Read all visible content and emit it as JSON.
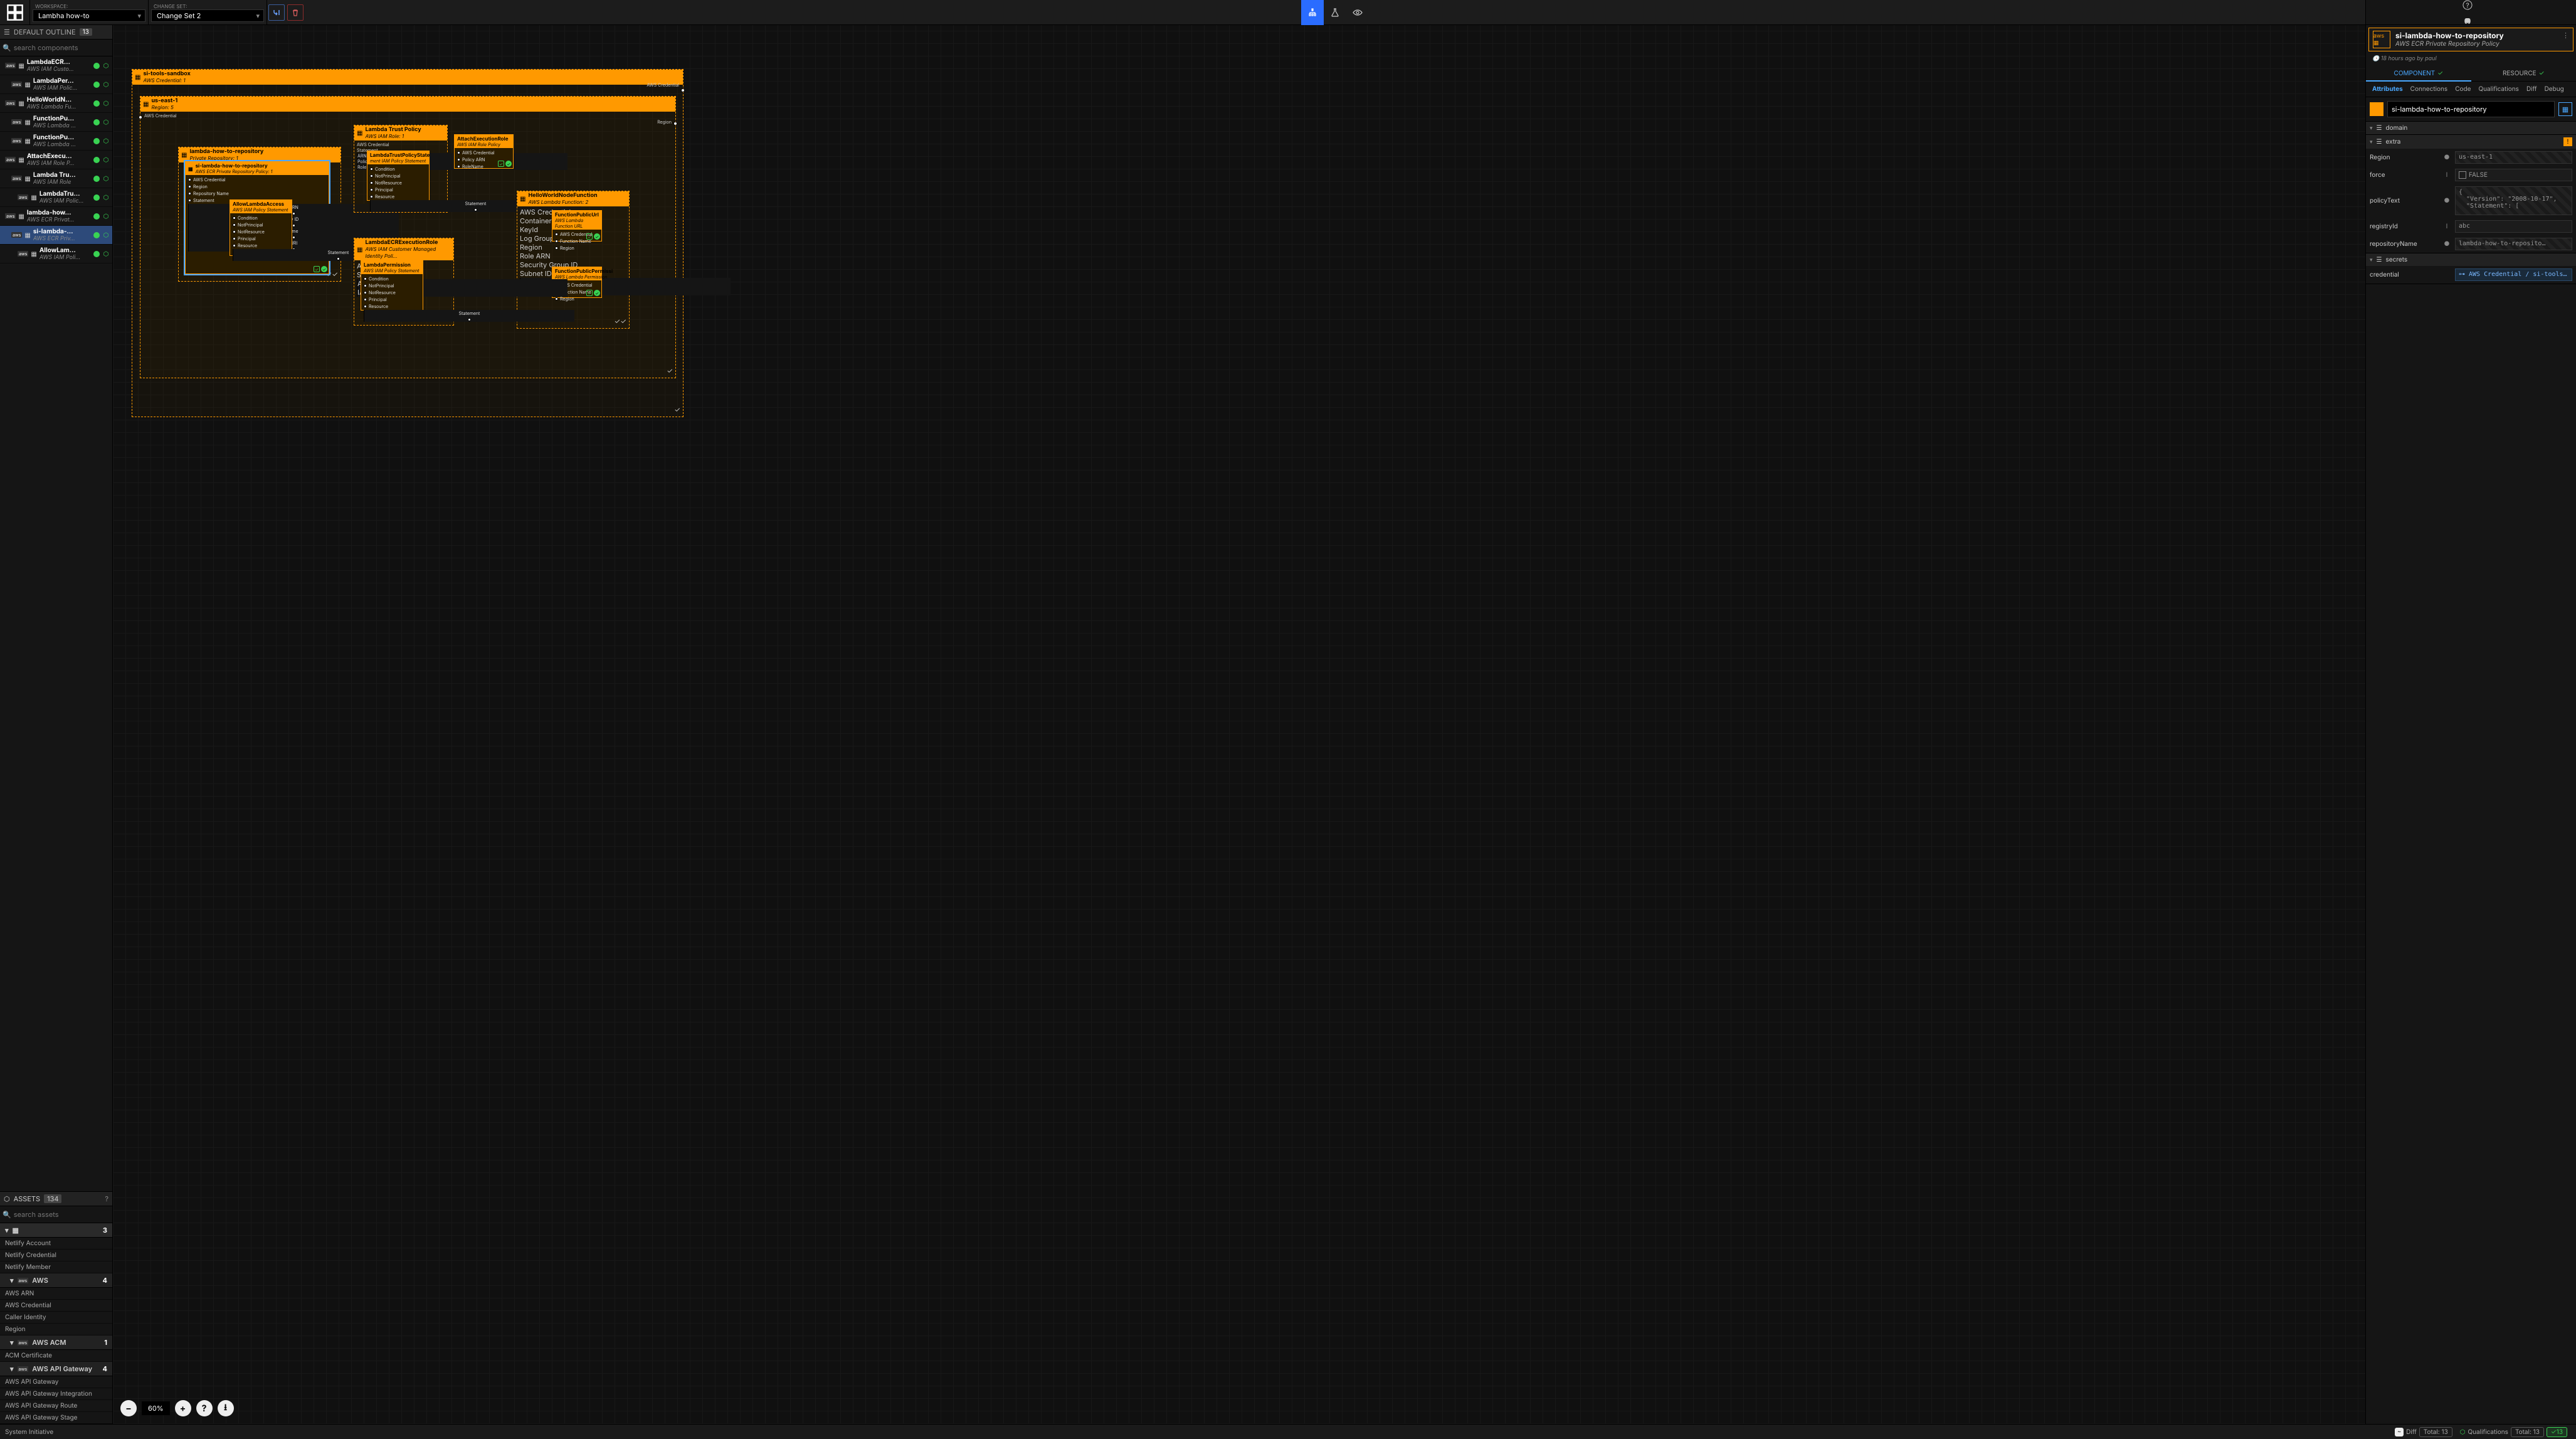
{
  "colors": {
    "accent_orange": "#ff9900",
    "accent_blue": "#2a6cff",
    "ok_green": "#39d353",
    "bg": "#111111",
    "panel": "#151515"
  },
  "topbar": {
    "workspace_label": "WORKSPACE:",
    "workspace_value": "Lambha how-to",
    "changeset_label": "CHANGE SET:",
    "changeset_value": "Change Set 2",
    "avatar_initial": "P"
  },
  "outline": {
    "title": "DEFAULT OUTLINE",
    "count": "13",
    "search_placeholder": "search components",
    "items": [
      {
        "indent": 0,
        "name": "LambdaECR…",
        "sub": "AWS IAM Custo…",
        "selected": false
      },
      {
        "indent": 1,
        "name": "LambdaPer…",
        "sub": "AWS IAM Polic…",
        "selected": false
      },
      {
        "indent": 0,
        "name": "HelloWorldN…",
        "sub": "AWS Lambda Fu…",
        "selected": false
      },
      {
        "indent": 1,
        "name": "FunctionPu…",
        "sub": "AWS Lambda …",
        "selected": false
      },
      {
        "indent": 1,
        "name": "FunctionPu…",
        "sub": "AWS Lambda …",
        "selected": false
      },
      {
        "indent": 0,
        "name": "AttachExecu…",
        "sub": "AWS IAM Role P…",
        "selected": false
      },
      {
        "indent": 1,
        "name": "Lambda Tru…",
        "sub": "AWS IAM Role",
        "selected": false
      },
      {
        "indent": 2,
        "name": "LambdaTru…",
        "sub": "AWS IAM Polic…",
        "selected": false
      },
      {
        "indent": 0,
        "name": "lambda-how…",
        "sub": "AWS ECR Privat…",
        "selected": false
      },
      {
        "indent": 1,
        "name": "si-lambda-…",
        "sub": "AWS ECR Priv…",
        "selected": true
      },
      {
        "indent": 2,
        "name": "AllowLam…",
        "sub": "AWS IAM Poli…",
        "selected": false
      }
    ]
  },
  "assets": {
    "title": "ASSETS",
    "count": "134",
    "search_placeholder": "search assets",
    "top_count": "3",
    "top_items": [
      "Netlify Account",
      "Netlify Credential",
      "Netlify Member"
    ],
    "groups": [
      {
        "name": "AWS",
        "count": "4",
        "items": [
          "AWS ARN",
          "AWS Credential",
          "Caller Identity",
          "Region"
        ]
      },
      {
        "name": "AWS ACM",
        "count": "1",
        "items": [
          "ACM Certificate"
        ]
      },
      {
        "name": "AWS API Gateway",
        "count": "4",
        "items": [
          "AWS API Gateway",
          "AWS API Gateway Integration",
          "AWS API Gateway Route",
          "AWS API Gateway Stage"
        ]
      }
    ]
  },
  "canvas": {
    "zoom": "60%",
    "outer_frame": {
      "title": "si-tools-sandbox",
      "sub": "AWS Credential: 1",
      "right_socket": "AWS Credential"
    },
    "region_frame": {
      "title": "us-east-1",
      "sub": "Region: 5",
      "left_socket": "AWS Credential",
      "right_socket": "Region"
    },
    "repo_frame": {
      "title": "lambda-how-to-repository",
      "sub": "Private Repository: 1"
    },
    "selected_node": {
      "title": "si-lambda-how-to-repository",
      "sub": "AWS ECR Private Repository Policy: 1",
      "inputs": [
        "AWS Credential",
        "Region",
        "Repository Name",
        "Statement"
      ],
      "outputs": [
        "ARN",
        "ry ID",
        "ame",
        "URI"
      ]
    },
    "inner_node": {
      "title": "AllowLambdaAccess",
      "sub": "AWS IAM Policy Statement",
      "inputs": [
        "Condition",
        "NotPrincipal",
        "NotResource",
        "Principal",
        "Resource"
      ],
      "output": "Statement"
    },
    "trust_frame": {
      "title": "Lambda Trust Policy",
      "sub": "AWS IAM Role: 1",
      "inputs": [
        "AWS Credential",
        "Statement"
      ],
      "outputs": [
        "ARN",
        "Policy ARN",
        "RoleName"
      ]
    },
    "trust_node": {
      "title": "LambdaTrustPolicyState",
      "sub": "ment IAM Policy Statement",
      "inputs": [
        "Condition",
        "NotPrincipal",
        "NotResource",
        "Principal",
        "Resource"
      ],
      "output": "Statement"
    },
    "attach_node": {
      "title": "AttachExecutionRole",
      "sub": "AWS IAM Role Policy",
      "inputs": [
        "AWS Credential",
        "Policy ARN",
        "RoleName"
      ]
    },
    "hello_frame": {
      "title": "HelloWorldNodeFunction",
      "sub": "AWS Lambda Function: 2",
      "inputs": [
        "AWS Credential",
        "Container Image",
        "KeyId",
        "Log Group Name",
        "Region",
        "Role ARN",
        "Security Group ID",
        "Subnet ID"
      ],
      "outputs": [
        "Function Name",
        "Function Version"
      ]
    },
    "fn_url_node": {
      "title": "FunctionPublicUrl",
      "sub": "AWS Lambda Function URL",
      "inputs": [
        "AWS Credential",
        "Function Name",
        "Region"
      ]
    },
    "fn_perm_node": {
      "title": "FunctionPublicPermissi",
      "sub": "AWS Lambda Permission",
      "inputs": [
        "AWS Credential",
        "Function Name",
        "Region"
      ]
    },
    "ecr_exec_frame": {
      "title": "LambdaECRExecutionRole",
      "sub": "AWS IAM Customer Managed Identity Poli…",
      "inputs": [
        "AWS Credential",
        "Statement"
      ],
      "outputs": [
        "ARN",
        "IAM Policy"
      ]
    },
    "perm_node": {
      "title": "LambdaPermission",
      "sub": "AWS IAM Policy Statement",
      "inputs": [
        "Condition",
        "NotPrincipal",
        "NotResource",
        "Principal",
        "Resource"
      ],
      "output": "Statement"
    }
  },
  "inspector": {
    "title": "si-lambda-how-to-repository",
    "subtitle": "AWS ECR Private Repository Policy",
    "meta": "18 hours ago by paul",
    "tab_component": "COMPONENT",
    "tab_resource": "RESOURCE",
    "subtabs": [
      "Attributes",
      "Connections",
      "Code",
      "Qualifications",
      "Diff",
      "Debug"
    ],
    "name_value": "si-lambda-how-to-repository",
    "sections": {
      "domain": "domain",
      "extra": "extra",
      "secrets": "secrets"
    },
    "fields": {
      "region": {
        "label": "Region",
        "type": "●",
        "value": "us-east-1"
      },
      "force": {
        "label": "force",
        "type": "I",
        "value": "FALSE"
      },
      "policyText": {
        "label": "policyText",
        "type": "●",
        "value": "{\n  \"Version\": \"2008-10-17\",\n  \"Statement\": ["
      },
      "registryId": {
        "label": "registryId",
        "type": "I",
        "value": "abc"
      },
      "repositoryName": {
        "label": "repositoryName",
        "type": "●",
        "value": "lambda-how-to-reposito…"
      },
      "credential": {
        "label": "credential",
        "type": "",
        "value": "⊶ AWS Credential / si-tools-sandbox"
      }
    }
  },
  "bottombar": {
    "brand": "System Initiative",
    "diff": "Diff",
    "diff_total": "Total: 13",
    "qual": "Qualifications",
    "qual_total": "Total: 13",
    "qual_ok": "13"
  }
}
